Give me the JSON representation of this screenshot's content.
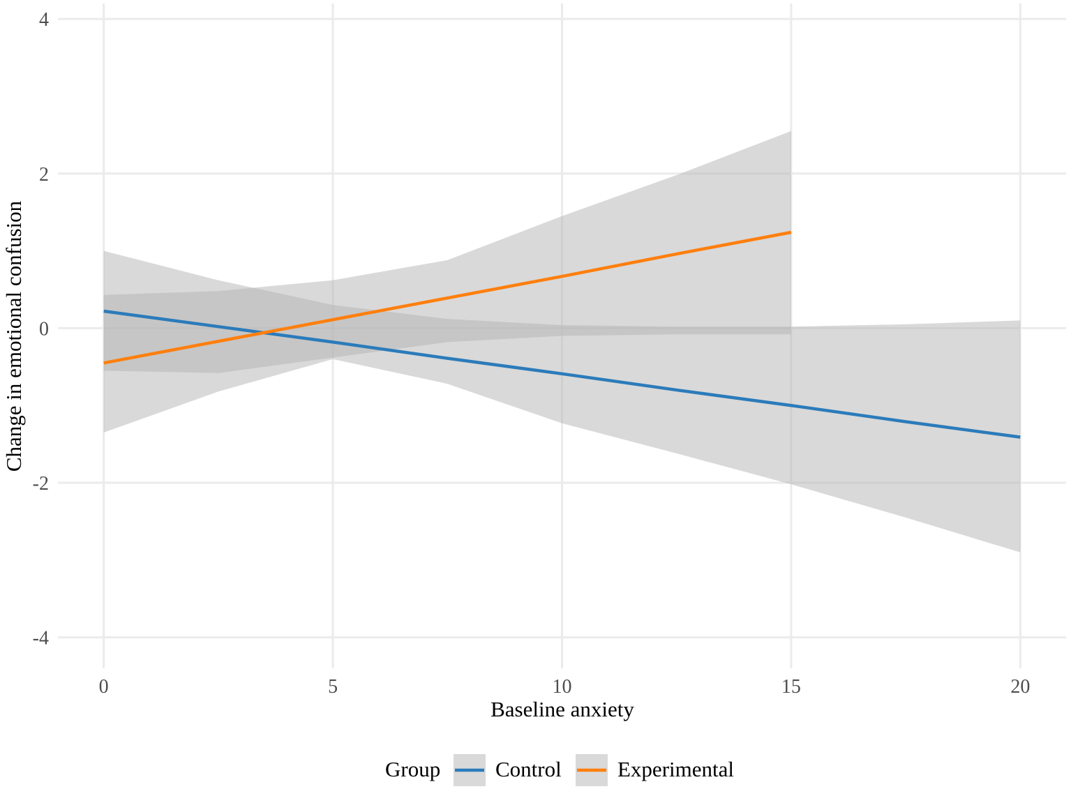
{
  "chart_data": {
    "type": "line",
    "title": "",
    "xlabel": "Baseline anxiety",
    "ylabel": "Change in emotional confusion",
    "xlim": [
      -1,
      21
    ],
    "ylim": [
      -4.4,
      4.2
    ],
    "xticks": [
      0,
      5,
      10,
      15,
      20
    ],
    "xtick_labels": [
      "0",
      "5",
      "10",
      "15",
      "20"
    ],
    "yticks": [
      4,
      2,
      0,
      -2,
      -4
    ],
    "ytick_labels": [
      "4",
      "2",
      "0",
      "-2",
      "-4"
    ],
    "grid": true,
    "legend_position": "bottom",
    "legend_title": "Group",
    "ribbon_color": "#b3b3b3",
    "series": [
      {
        "name": "Control",
        "color": "#2b7bba",
        "x": [
          0,
          2.5,
          5,
          7.5,
          10,
          12.5,
          15,
          17.5,
          20
        ],
        "y": [
          0.22,
          0.02,
          -0.18,
          -0.39,
          -0.59,
          -0.8,
          -1.0,
          -1.21,
          -1.41
        ],
        "lower": [
          -1.35,
          -0.82,
          -0.4,
          -0.72,
          -1.23,
          -1.62,
          -2.02,
          -2.45,
          -2.9
        ],
        "upper": [
          1.0,
          0.62,
          0.3,
          0.12,
          0.04,
          0.02,
          0.02,
          0.05,
          0.1
        ]
      },
      {
        "name": "Experimental",
        "color": "#ff7f0e",
        "x": [
          0,
          2.5,
          5,
          7.5,
          10,
          12.5,
          15
        ],
        "y": [
          -0.45,
          -0.17,
          0.11,
          0.39,
          0.67,
          0.96,
          1.24
        ],
        "lower": [
          -0.55,
          -0.58,
          -0.38,
          -0.18,
          -0.1,
          -0.08,
          -0.08
        ],
        "upper": [
          0.43,
          0.48,
          0.62,
          0.88,
          1.45,
          1.98,
          2.55
        ]
      }
    ]
  }
}
